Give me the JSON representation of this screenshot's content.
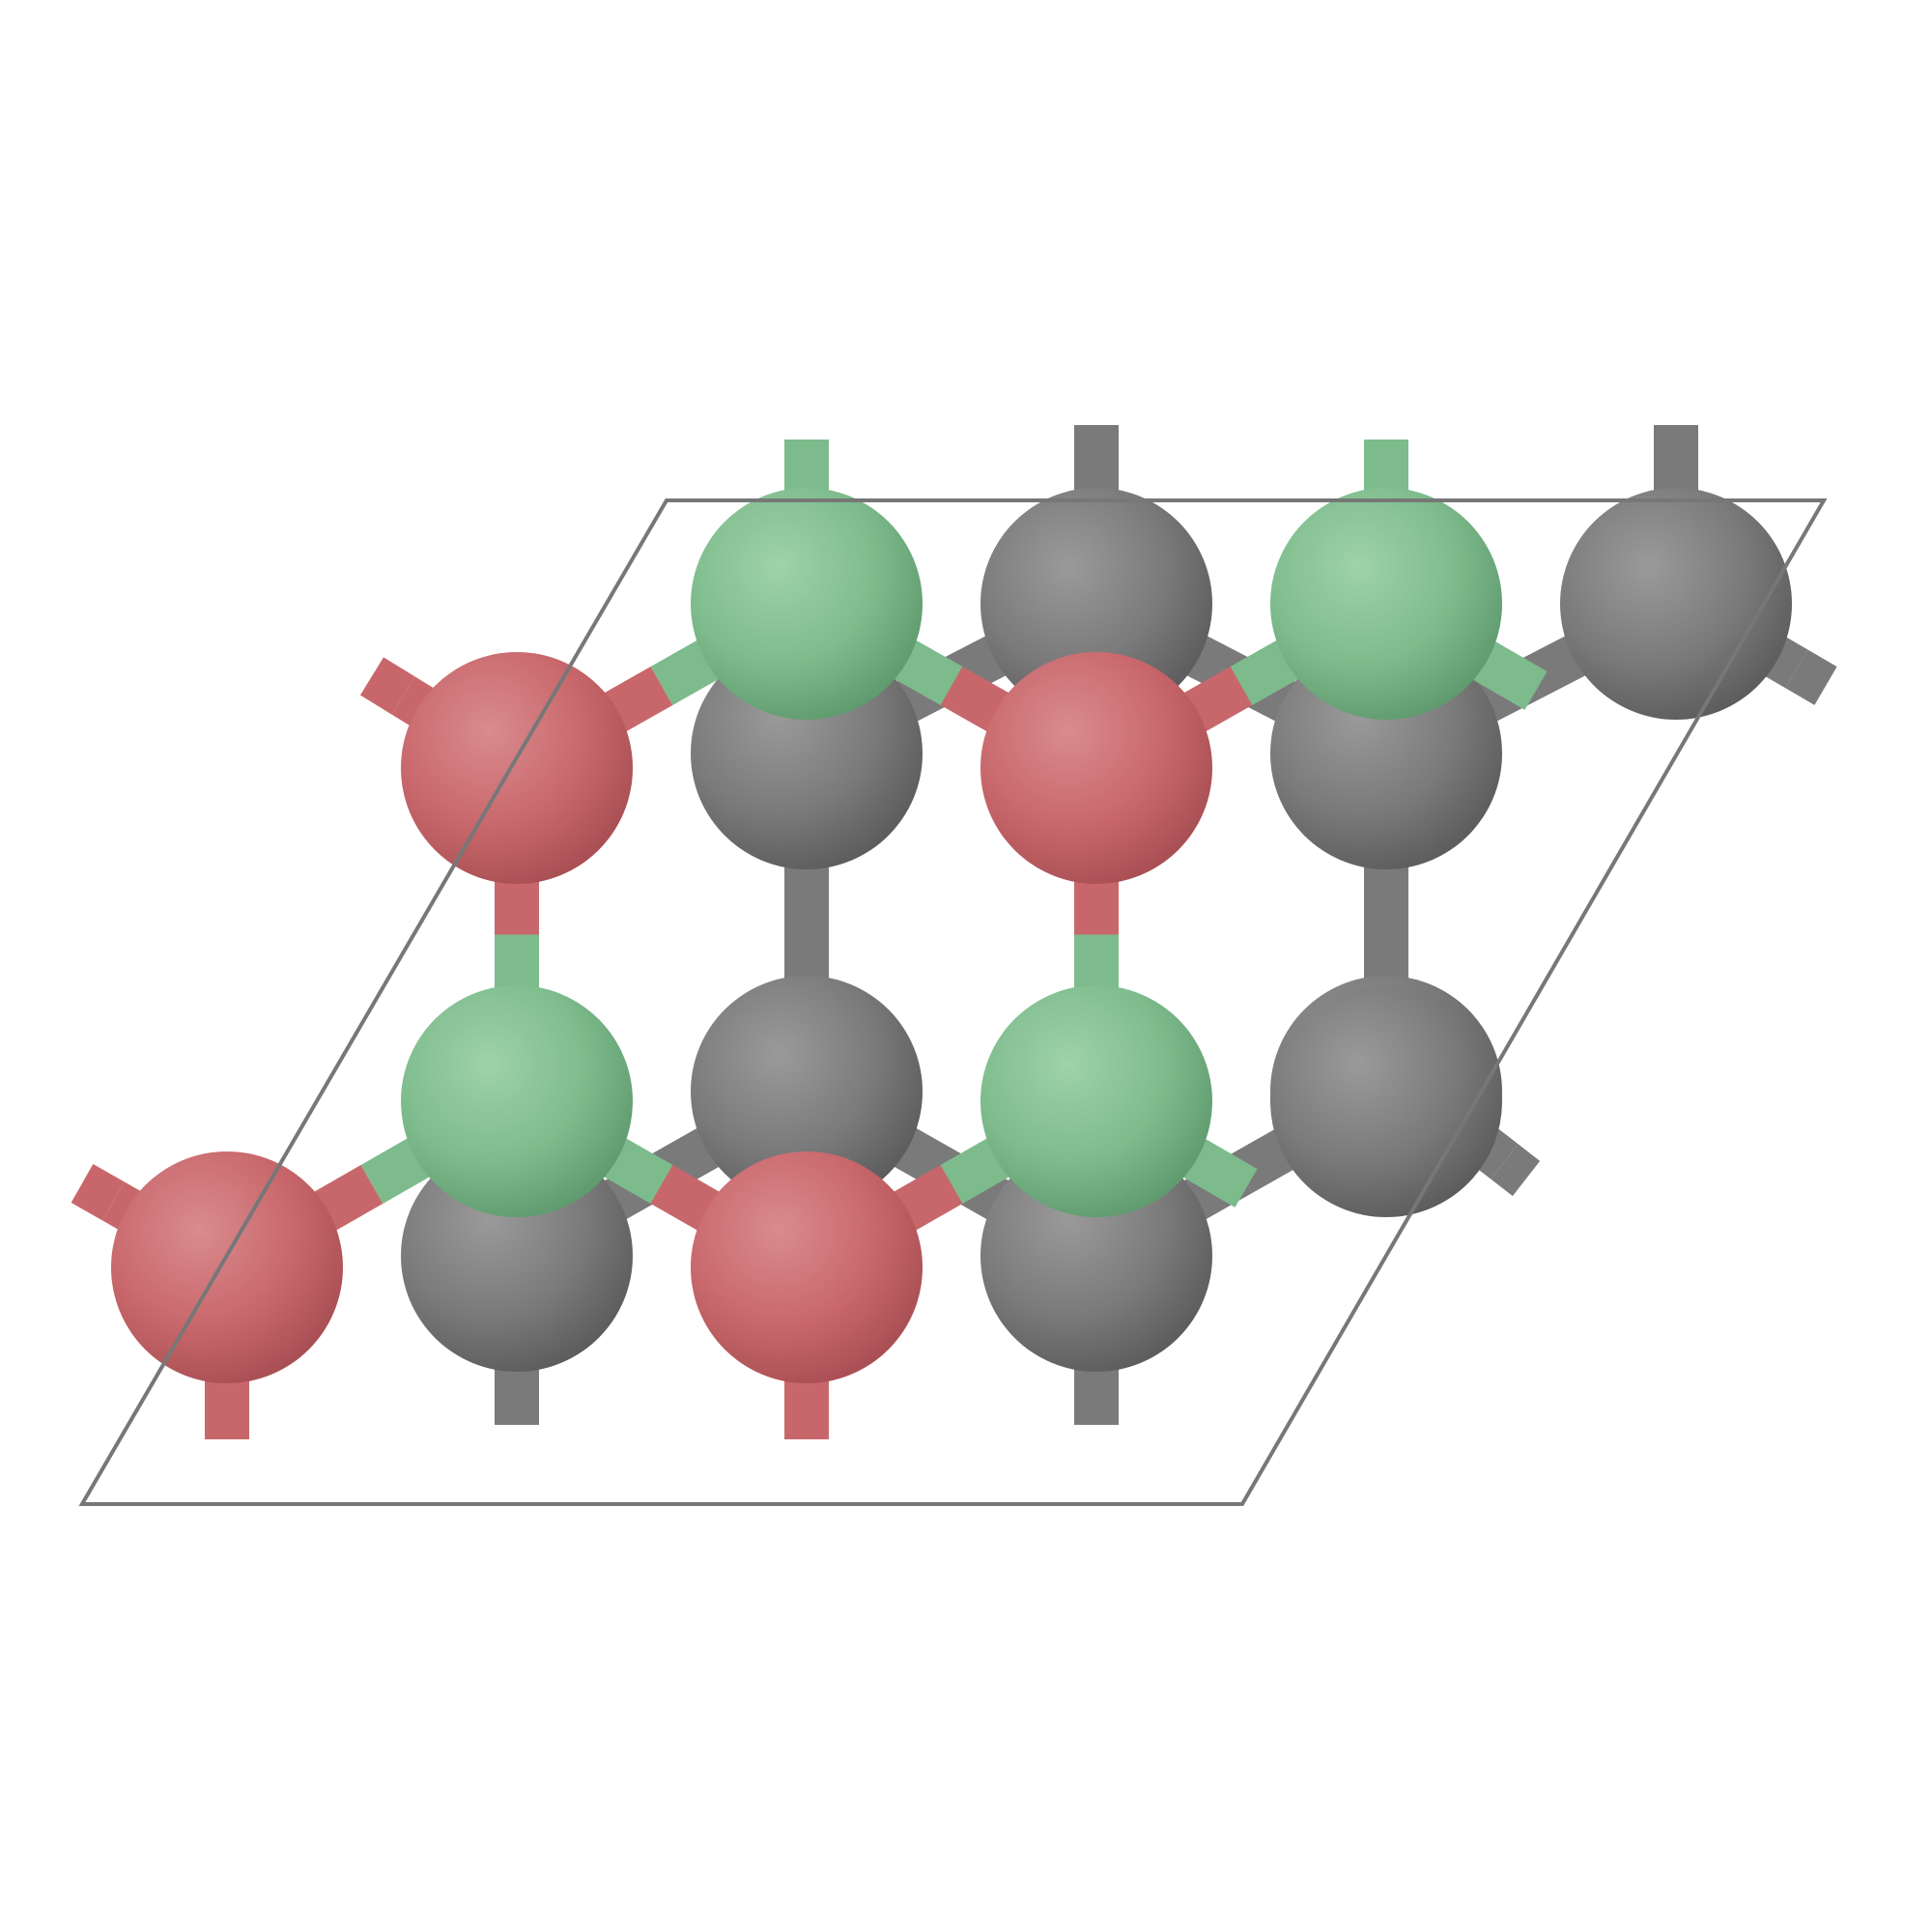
{
  "figure": {
    "type": "crystal-structure-ball-and-stick",
    "background": "#ffffff",
    "elements": {
      "red": {
        "color": "#c8676b",
        "highlight": "#d98b8e",
        "shade": "#a84f53"
      },
      "green": {
        "color": "#7dbb8c",
        "highlight": "#9fd2aa",
        "shade": "#5f9a6e"
      },
      "gray": {
        "color": "#7a7a7a",
        "highlight": "#9a9a9a",
        "shade": "#5c5c5c"
      }
    },
    "cell_outline_color": "#777777",
    "layers": {
      "back": [
        {
          "element": "gray",
          "row": 0,
          "col": 0
        },
        {
          "element": "gray",
          "row": 0,
          "col": 1
        },
        {
          "element": "gray",
          "row": 1,
          "col": 0
        },
        {
          "element": "gray",
          "row": 1,
          "col": 1
        },
        {
          "element": "gray",
          "row": 2,
          "col": 0
        },
        {
          "element": "gray",
          "row": 2,
          "col": 1
        }
      ],
      "front": [
        {
          "element": "green",
          "row": 0,
          "col": 0
        },
        {
          "element": "gray",
          "row": 0,
          "col": 1
        },
        {
          "element": "green",
          "row": 0,
          "col": 2
        },
        {
          "element": "gray",
          "row": 0,
          "col": 3
        },
        {
          "element": "red",
          "row": 1,
          "col": 0
        },
        {
          "element": "red",
          "row": 1,
          "col": 2
        },
        {
          "element": "green",
          "row": 2,
          "col": 0
        },
        {
          "element": "green",
          "row": 2,
          "col": 2
        },
        {
          "element": "gray",
          "row": 2,
          "col": 3
        },
        {
          "element": "red",
          "row": 3,
          "col": -1
        },
        {
          "element": "red",
          "row": 3,
          "col": 1
        }
      ]
    }
  }
}
